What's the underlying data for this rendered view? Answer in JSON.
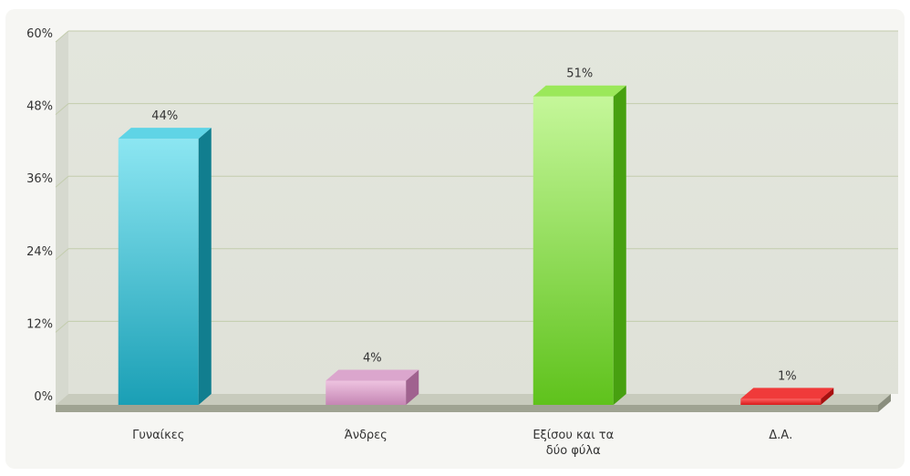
{
  "chart_data": {
    "type": "bar",
    "categories": [
      "Γυναίκες",
      "Άνδρες",
      "Εξίσου και τα|δύο φύλα",
      "Δ.Α."
    ],
    "values": [
      44,
      4,
      51,
      1
    ],
    "value_labels": [
      "44%",
      "4%",
      "51%",
      "1%"
    ],
    "yticks": [
      "0%",
      "12%",
      "24%",
      "36%",
      "48%",
      "60%"
    ],
    "ylim": [
      0,
      60
    ],
    "grid": true,
    "legend": "none",
    "title": "",
    "xlabel": "",
    "ylabel": "",
    "colors": {
      "bars": [
        {
          "front_top": "#8ce6f2",
          "front_bottom": "#1a9fb5",
          "side": "#117e8f",
          "top": "#5fd4e6"
        },
        {
          "front_top": "#eec3e0",
          "front_bottom": "#c586b4",
          "side": "#a0628f",
          "top": "#dba6cd"
        },
        {
          "front_top": "#c5f79a",
          "front_bottom": "#5fc21c",
          "side": "#47a010",
          "top": "#9be85a"
        },
        {
          "front_top": "#ff6060",
          "front_bottom": "#d81a1a",
          "side": "#a81010",
          "top": "#f03a3a"
        }
      ],
      "plot_bg_top": "#e3e6dd",
      "plot_bg_bottom": "#dfe1d8",
      "grid": "#c3ccad",
      "floor": "#c8cbbd",
      "floor_side": "#9fa392",
      "axis_text": "#333333",
      "label_text": "#333333",
      "panel_bg": "#f6f6f3"
    }
  }
}
